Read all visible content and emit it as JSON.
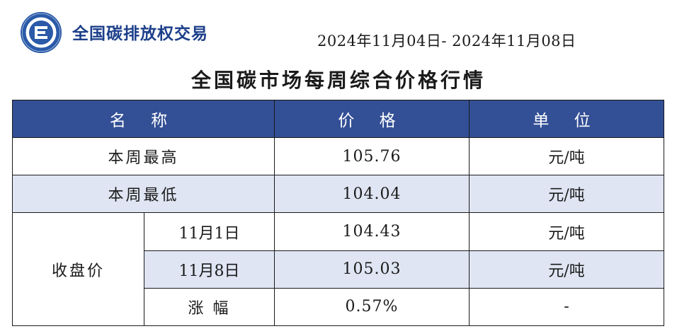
{
  "header": {
    "brand": "全国碳排放权交易",
    "date_range": "2024年11月04日- 2024年11月08日"
  },
  "title": "全国碳市场每周综合价格行情",
  "table": {
    "columns": [
      "名 称",
      "价 格",
      "单 位"
    ],
    "rows": [
      {
        "label": "本周最高",
        "price": "105.76",
        "unit": "元/吨"
      },
      {
        "label": "本周最低",
        "price": "104.04",
        "unit": "元/吨"
      }
    ],
    "closing": {
      "group_label": "收盘价",
      "rows": [
        {
          "date": "11月1日",
          "price": "104.43",
          "unit": "元/吨"
        },
        {
          "date": "11月8日",
          "price": "105.03",
          "unit": "元/吨"
        },
        {
          "date": "涨 幅",
          "price": "0.57%",
          "unit": "-"
        }
      ]
    }
  },
  "colors": {
    "header_bg": "#334f95",
    "row_shade": "#dfe5f3",
    "brand": "#1c3f8a"
  }
}
